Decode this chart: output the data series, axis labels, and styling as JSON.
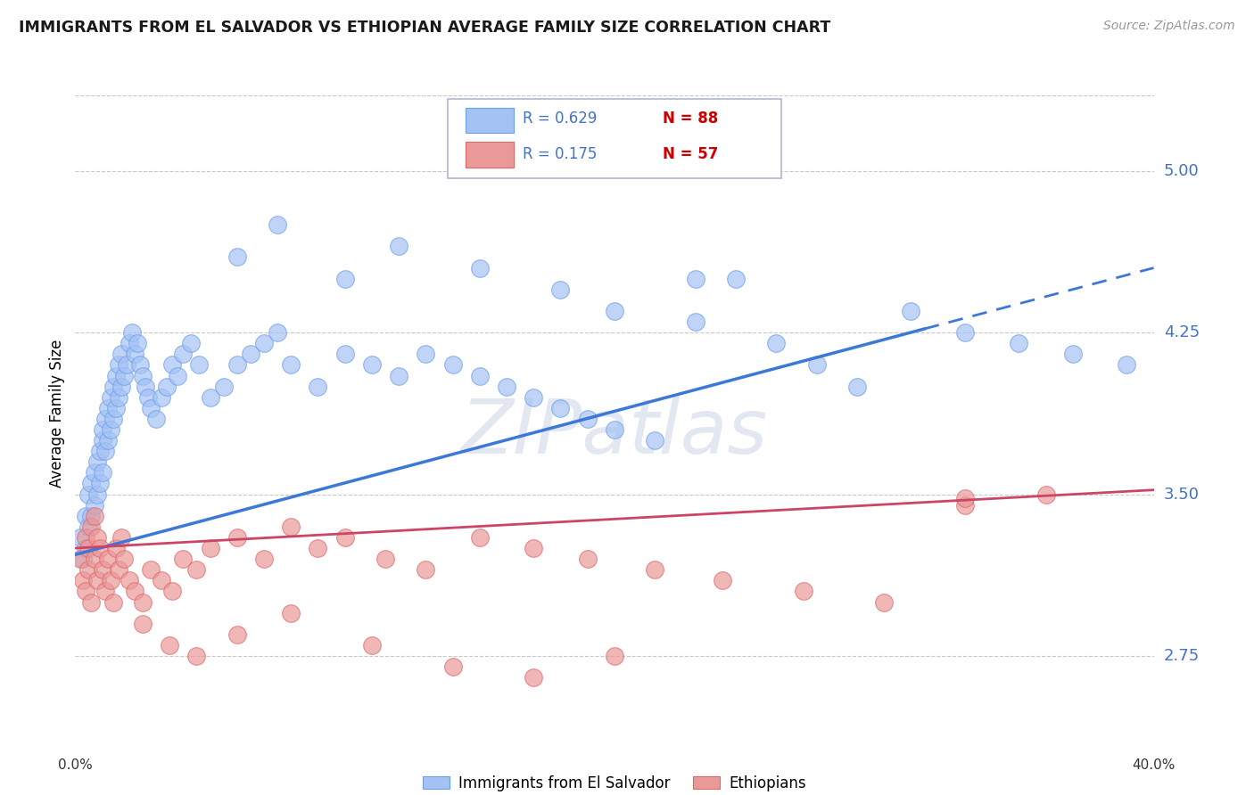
{
  "title": "IMMIGRANTS FROM EL SALVADOR VS ETHIOPIAN AVERAGE FAMILY SIZE CORRELATION CHART",
  "source": "Source: ZipAtlas.com",
  "ylabel": "Average Family Size",
  "xlim": [
    0,
    0.4
  ],
  "ylim": [
    2.4,
    5.35
  ],
  "yticks": [
    2.75,
    3.5,
    4.25,
    5.0
  ],
  "ytick_color": "#4472c4",
  "background_color": "#ffffff",
  "grid_color": "#c8c8c8",
  "watermark": "ZIPatlas",
  "series1_color": "#a4c2f4",
  "series1_edge": "#6d9eeb",
  "series2_color": "#ea9999",
  "series2_edge": "#e06666",
  "trend1_color": "#3c78d8",
  "trend2_color": "#cc4466",
  "legend_R1": "R = 0.629",
  "legend_N1": "N = 88",
  "legend_R2": "R = 0.175",
  "legend_N2": "N = 57",
  "legend_color": "#4472c4",
  "legend_N_color": "#cc0000",
  "label1": "Immigrants from El Salvador",
  "label2": "Ethiopians",
  "scatter1_x": [
    0.002,
    0.003,
    0.004,
    0.004,
    0.005,
    0.005,
    0.006,
    0.006,
    0.007,
    0.007,
    0.008,
    0.008,
    0.009,
    0.009,
    0.01,
    0.01,
    0.01,
    0.011,
    0.011,
    0.012,
    0.012,
    0.013,
    0.013,
    0.014,
    0.014,
    0.015,
    0.015,
    0.016,
    0.016,
    0.017,
    0.017,
    0.018,
    0.019,
    0.02,
    0.021,
    0.022,
    0.023,
    0.024,
    0.025,
    0.026,
    0.027,
    0.028,
    0.03,
    0.032,
    0.034,
    0.036,
    0.038,
    0.04,
    0.043,
    0.046,
    0.05,
    0.055,
    0.06,
    0.065,
    0.07,
    0.075,
    0.08,
    0.09,
    0.1,
    0.11,
    0.12,
    0.13,
    0.14,
    0.15,
    0.16,
    0.17,
    0.18,
    0.19,
    0.2,
    0.215,
    0.23,
    0.245,
    0.26,
    0.275,
    0.29,
    0.31,
    0.33,
    0.35,
    0.37,
    0.39,
    0.06,
    0.075,
    0.1,
    0.12,
    0.15,
    0.18,
    0.2,
    0.23
  ],
  "scatter1_y": [
    3.3,
    3.2,
    3.4,
    3.25,
    3.5,
    3.35,
    3.55,
    3.4,
    3.6,
    3.45,
    3.65,
    3.5,
    3.7,
    3.55,
    3.75,
    3.6,
    3.8,
    3.7,
    3.85,
    3.75,
    3.9,
    3.8,
    3.95,
    3.85,
    4.0,
    3.9,
    4.05,
    3.95,
    4.1,
    4.0,
    4.15,
    4.05,
    4.1,
    4.2,
    4.25,
    4.15,
    4.2,
    4.1,
    4.05,
    4.0,
    3.95,
    3.9,
    3.85,
    3.95,
    4.0,
    4.1,
    4.05,
    4.15,
    4.2,
    4.1,
    3.95,
    4.0,
    4.1,
    4.15,
    4.2,
    4.25,
    4.1,
    4.0,
    4.15,
    4.1,
    4.05,
    4.15,
    4.1,
    4.05,
    4.0,
    3.95,
    3.9,
    3.85,
    3.8,
    3.75,
    4.3,
    4.5,
    4.2,
    4.1,
    4.0,
    4.35,
    4.25,
    4.2,
    4.15,
    4.1,
    4.6,
    4.75,
    4.5,
    4.65,
    4.55,
    4.45,
    4.35,
    4.5
  ],
  "scatter2_x": [
    0.002,
    0.003,
    0.004,
    0.004,
    0.005,
    0.005,
    0.006,
    0.006,
    0.007,
    0.007,
    0.008,
    0.008,
    0.009,
    0.01,
    0.011,
    0.012,
    0.013,
    0.014,
    0.015,
    0.016,
    0.017,
    0.018,
    0.02,
    0.022,
    0.025,
    0.028,
    0.032,
    0.036,
    0.04,
    0.045,
    0.05,
    0.06,
    0.07,
    0.08,
    0.09,
    0.1,
    0.115,
    0.13,
    0.15,
    0.17,
    0.19,
    0.215,
    0.24,
    0.27,
    0.3,
    0.33,
    0.36,
    0.025,
    0.035,
    0.045,
    0.06,
    0.08,
    0.11,
    0.14,
    0.17,
    0.2,
    0.33
  ],
  "scatter2_y": [
    3.2,
    3.1,
    3.3,
    3.05,
    3.25,
    3.15,
    3.35,
    3.0,
    3.4,
    3.2,
    3.3,
    3.1,
    3.25,
    3.15,
    3.05,
    3.2,
    3.1,
    3.0,
    3.25,
    3.15,
    3.3,
    3.2,
    3.1,
    3.05,
    3.0,
    3.15,
    3.1,
    3.05,
    3.2,
    3.15,
    3.25,
    3.3,
    3.2,
    3.35,
    3.25,
    3.3,
    3.2,
    3.15,
    3.3,
    3.25,
    3.2,
    3.15,
    3.1,
    3.05,
    3.0,
    3.45,
    3.5,
    2.9,
    2.8,
    2.75,
    2.85,
    2.95,
    2.8,
    2.7,
    2.65,
    2.75,
    3.48
  ],
  "trend1_x0": 0.0,
  "trend1_y0": 3.22,
  "trend1_x1": 0.4,
  "trend1_y1": 4.55,
  "trend1_solid_end": 0.315,
  "trend2_x0": 0.0,
  "trend2_y0": 3.25,
  "trend2_x1": 0.4,
  "trend2_y1": 3.52
}
